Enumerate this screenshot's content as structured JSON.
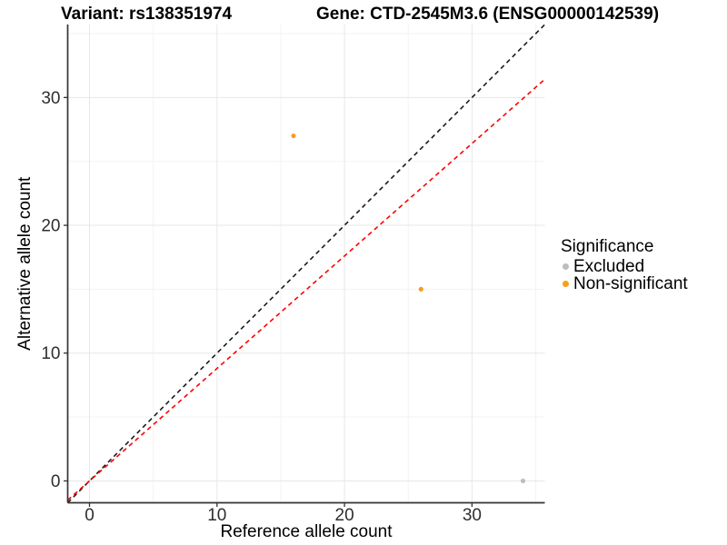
{
  "titles": {
    "left": "Variant: rs138351974",
    "right": "Gene: CTD-2545M3.6 (ENSG00000142539)"
  },
  "chart_data": {
    "type": "scatter",
    "xlabel": "Reference allele count",
    "ylabel": "Alternative allele count",
    "xlim": [
      -1.71,
      35.71
    ],
    "ylim": [
      -1.71,
      35.71
    ],
    "x_ticks": [
      0,
      10,
      20,
      30
    ],
    "y_ticks": [
      0,
      10,
      20,
      30
    ],
    "x_minor_ticks": [
      5,
      15,
      25,
      35
    ],
    "y_minor_ticks": [
      5,
      15,
      25,
      35
    ],
    "grid": "major+minor",
    "series": [
      {
        "name": "Excluded",
        "color": "#BDBDBD",
        "points": [
          {
            "x": 34,
            "y": 0
          }
        ]
      },
      {
        "name": "Non-significant",
        "color": "#FA9E1B",
        "points": [
          {
            "x": 16,
            "y": 27
          },
          {
            "x": 26,
            "y": 15
          }
        ]
      }
    ],
    "reference_lines": [
      {
        "name": "identity-line",
        "slope": 1.0,
        "intercept": 0,
        "color": "#1A1A1A",
        "style": "dashed"
      },
      {
        "name": "expected-ratio-line",
        "slope": 0.88,
        "intercept": 0,
        "color": "#FF0000",
        "style": "dashed"
      }
    ],
    "legend": {
      "title": "Significance",
      "position": "right",
      "items": [
        {
          "label": "Excluded",
          "color": "#BDBDBD"
        },
        {
          "label": "Non-significant",
          "color": "#FA9E1B"
        }
      ]
    }
  },
  "style_colors": {
    "axis_line": "#333333",
    "tick_label": "#2E2E2E",
    "grid_major": "#E7E7E7",
    "grid_minor": "#F3F3F3",
    "background": "#FFFFFF"
  }
}
